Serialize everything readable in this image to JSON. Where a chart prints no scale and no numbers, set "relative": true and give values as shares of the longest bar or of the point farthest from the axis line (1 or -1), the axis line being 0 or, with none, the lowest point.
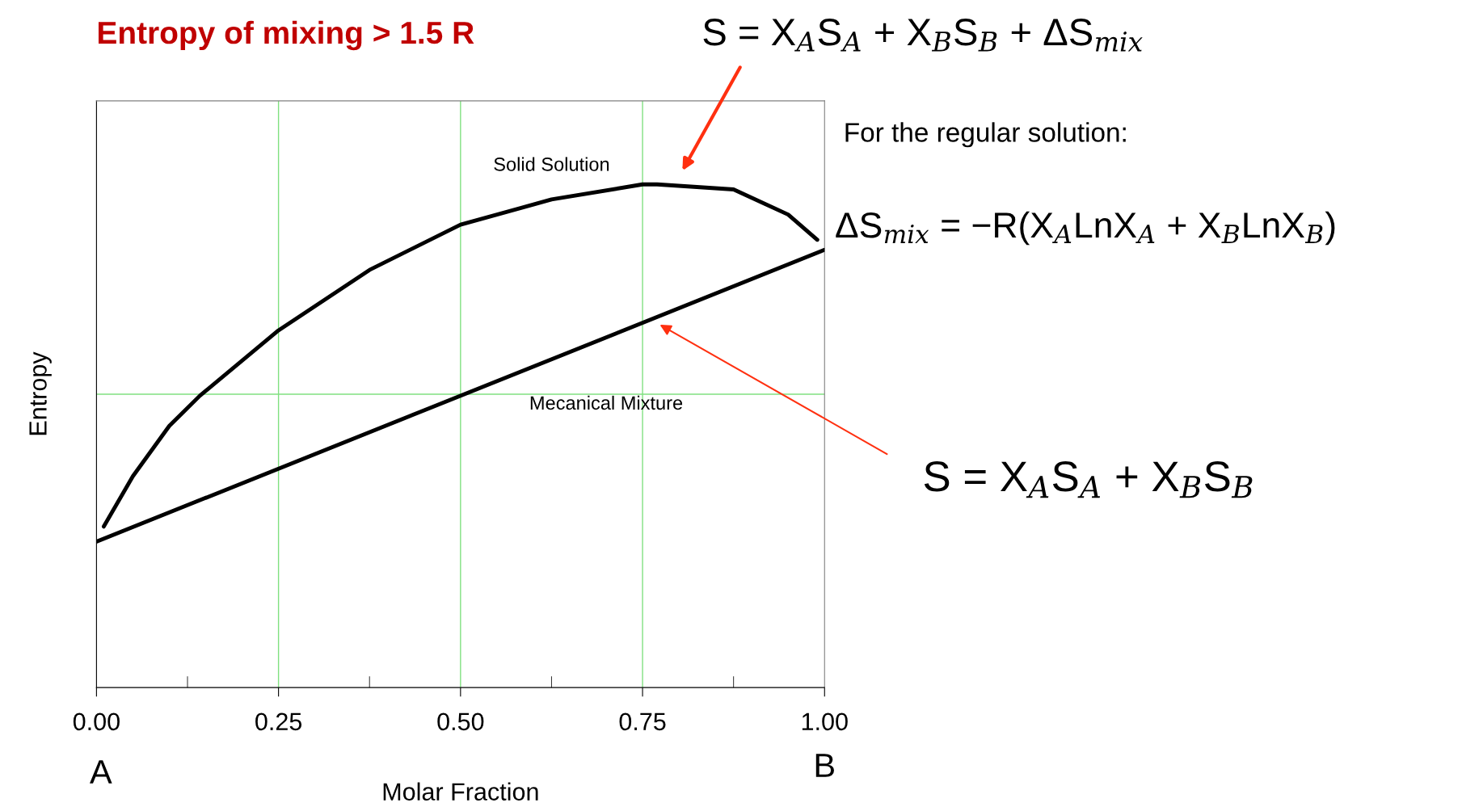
{
  "chart_data": {
    "type": "line",
    "title": "Entropy of mixing > 1.5 R",
    "xlabel": "Molar Fraction",
    "ylabel": "Entropy",
    "relative": true,
    "xlim": [
      0,
      1
    ],
    "xticks": [
      {
        "value": 0,
        "label": "0.00"
      },
      {
        "value": 0.125,
        "label": null
      },
      {
        "value": 0.25,
        "label": "0.25"
      },
      {
        "value": 0.375,
        "label": null
      },
      {
        "value": 0.5,
        "label": "0.50"
      },
      {
        "value": 0.625,
        "label": null
      },
      {
        "value": 0.75,
        "label": "0.75"
      },
      {
        "value": 0.875,
        "label": null
      },
      {
        "value": 1,
        "label": "1.00"
      }
    ],
    "series": [
      {
        "name": "Solid Solution",
        "color": "#000000",
        "x": [
          0.01,
          0.05,
          0.1,
          0.142,
          0.25,
          0.375,
          0.5,
          0.625,
          0.75,
          0.77,
          0.875,
          0.95,
          0.99
        ],
        "values": [
          0.32,
          0.42,
          0.52,
          0.58,
          0.71,
          0.83,
          0.92,
          0.97,
          1.0,
          1.0,
          0.99,
          0.94,
          0.89
        ]
      },
      {
        "name": "Mecanical Mixture",
        "color": "#000000",
        "x": [
          0,
          1
        ],
        "values": [
          0.29,
          0.87
        ]
      }
    ],
    "ref_lines": [
      {
        "axis": "y",
        "value": 0.583,
        "color": "#80e080"
      }
    ],
    "grid": "x",
    "legend": false,
    "marker": "none",
    "line_style": "solid",
    "annotations": [
      "S = X$_{A}$S$_{A}$ + X$_{B}$S$_{B}$ + ΔS$_{mix}$",
      "For the regular solution:",
      "ΔS$_{mix}$ = −R(X$_{A}$LnX$_{A}$ + X$_{B}$LnX$_{B}$)",
      "S = X$_{A}$S$_{A}$ + X$_{B}$S$_{B}$",
      "A",
      "B"
    ]
  }
}
